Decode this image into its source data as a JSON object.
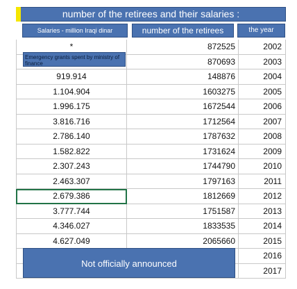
{
  "title": "number of the retirees and their salaries :",
  "headers": {
    "salaries": "Salaries - million Iraqi dinar",
    "retirees": "number of the retirees",
    "year": "the year"
  },
  "grant_note": "Emergency grants spent by ministry of finance",
  "footer_note": "Not officially announced",
  "rows": [
    {
      "salary": "*",
      "retirees": "872525",
      "year": "2002"
    },
    {
      "salary": "",
      "retirees": "870693",
      "year": "2003"
    },
    {
      "salary": "919.914",
      "retirees": "148876",
      "year": "2004"
    },
    {
      "salary": "1.104.904",
      "retirees": "1603275",
      "year": "2005"
    },
    {
      "salary": "1.996.175",
      "retirees": "1672544",
      "year": "2006"
    },
    {
      "salary": "3.816.716",
      "retirees": "1712564",
      "year": "2007"
    },
    {
      "salary": "2.786.140",
      "retirees": "1787632",
      "year": "2008"
    },
    {
      "salary": "1.582.822",
      "retirees": "1731624",
      "year": "2009"
    },
    {
      "salary": "2.307.243",
      "retirees": "1744790",
      "year": "2010"
    },
    {
      "salary": "2.463.307",
      "retirees": "1797163",
      "year": "2011"
    },
    {
      "salary": "2.679.386",
      "retirees": "1812669",
      "year": "2012"
    },
    {
      "salary": "3.777.744",
      "retirees": "1751587",
      "year": "2013"
    },
    {
      "salary": "4.346.027",
      "retirees": "1833535",
      "year": "2014"
    },
    {
      "salary": "4.627.049",
      "retirees": "2065660",
      "year": "2015"
    },
    {
      "salary": "",
      "retirees": "",
      "year": "2016"
    },
    {
      "salary": "",
      "retirees": "",
      "year": "2017"
    }
  ],
  "selected_row": 10,
  "colors": {
    "header_blue": "#4a72b0",
    "marker_yellow": "#f5e600",
    "selection_green": "#217346"
  }
}
